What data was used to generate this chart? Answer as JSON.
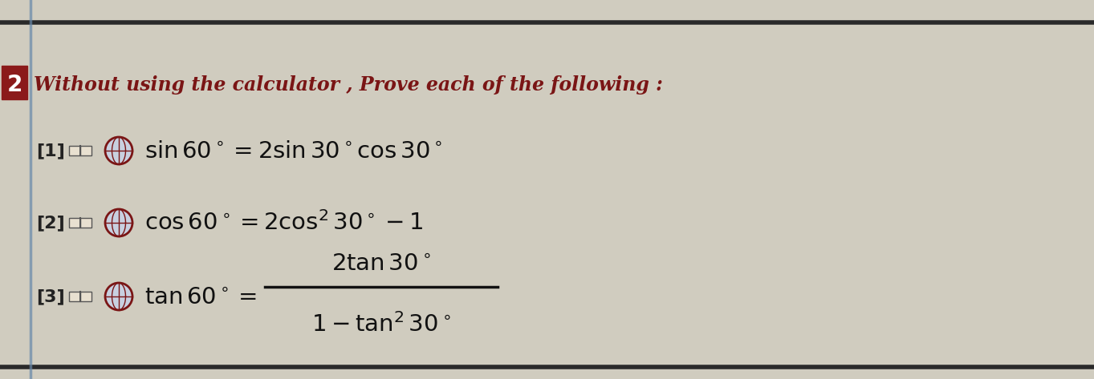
{
  "bg_color": "#c8c4b8",
  "paper_color": "#d0ccbf",
  "title_number": "2",
  "title_text": "Without using the calculator , Prove each of the following :",
  "item1_bracket": "[1]",
  "item1_formula": "$\\sin 60^\\circ = 2\\sin 30^\\circ \\cos 30^\\circ$",
  "item2_bracket": "[2]",
  "item2_formula": "$\\cos 60^\\circ = 2\\cos^2 30^\\circ - 1$",
  "item3_bracket": "[3]",
  "item3_lhs": "$\\tan 60^\\circ =$",
  "item3_numerator": "$2\\tan 30^\\circ$",
  "item3_denominator": "$1 - \\tan^2 30^\\circ$",
  "number_box_color": "#8B1A1A",
  "dark_red_color": "#7a1515",
  "text_color": "#1a1010",
  "formula_color": "#111111",
  "bracket_color": "#222222",
  "line_color": "#2a2a2a"
}
